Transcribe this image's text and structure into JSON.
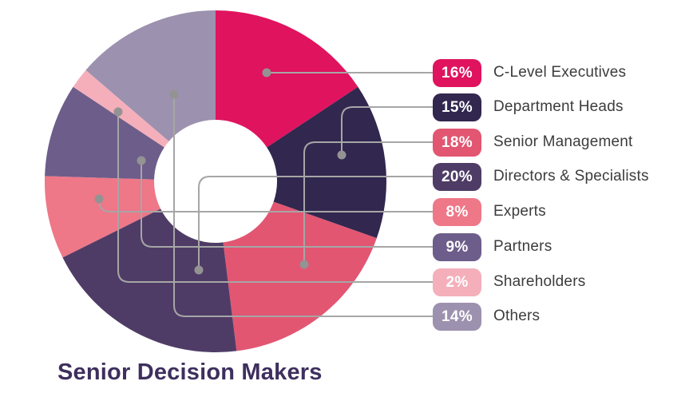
{
  "title": "Senior Decision Makers",
  "chart_data": {
    "type": "pie",
    "subtype": "donut",
    "title": "Senior Decision Makers",
    "legend_position": "right",
    "items": [
      {
        "label": "C-Level Executives",
        "value": 16,
        "badge": "16%",
        "color": "#E0135F"
      },
      {
        "label": "Department Heads",
        "value": 15,
        "badge": "15%",
        "color": "#32274F"
      },
      {
        "label": "Senior Management",
        "value": 18,
        "badge": "18%",
        "color": "#E25672"
      },
      {
        "label": "Directors & Specialists",
        "value": 20,
        "badge": "20%",
        "color": "#4E3C66"
      },
      {
        "label": "Experts",
        "value": 8,
        "badge": "8%",
        "color": "#EE7788"
      },
      {
        "label": "Partners",
        "value": 9,
        "badge": "9%",
        "color": "#6D5D8A"
      },
      {
        "label": "Shareholders",
        "value": 2,
        "badge": "2%",
        "color": "#F4AFBB"
      },
      {
        "label": "Others",
        "value": 14,
        "badge": "14%",
        "color": "#9C91AE"
      }
    ]
  },
  "colors": {
    "background": "#FFFFFF",
    "leader_line": "#A6A6A6",
    "leader_dot": "#939393",
    "title_text": "#3E2F5E",
    "label_text": "#3C3C3C",
    "badge_text": "#FFFFFF"
  }
}
